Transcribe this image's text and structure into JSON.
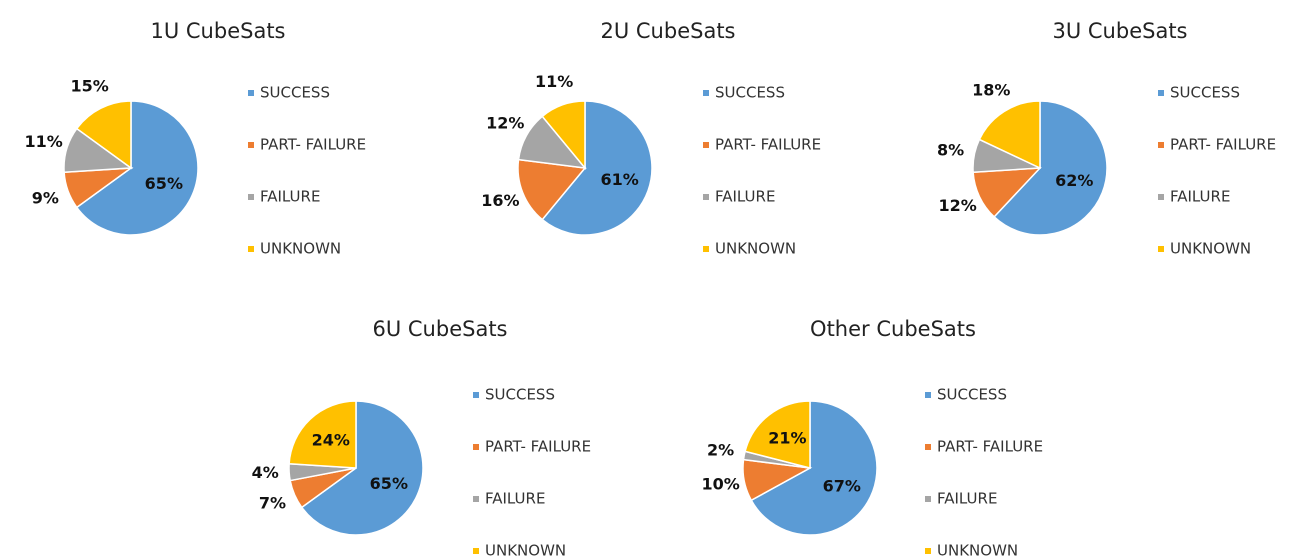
{
  "chart_data": [
    {
      "type": "pie",
      "title": "1U CubeSats",
      "categories": [
        "SUCCESS",
        "PART- FAILURE",
        "FAILURE",
        "UNKNOWN"
      ],
      "values": [
        65,
        9,
        11,
        15
      ],
      "value_labels": [
        "65%",
        "9%",
        "11%",
        "15%"
      ],
      "colors": [
        "#5b9bd5",
        "#ed7d31",
        "#a5a5a5",
        "#ffc000"
      ]
    },
    {
      "type": "pie",
      "title": "2U CubeSats",
      "categories": [
        "SUCCESS",
        "PART- FAILURE",
        "FAILURE",
        "UNKNOWN"
      ],
      "values": [
        61,
        16,
        12,
        11
      ],
      "value_labels": [
        "61%",
        "16%",
        "12%",
        "11%"
      ],
      "colors": [
        "#5b9bd5",
        "#ed7d31",
        "#a5a5a5",
        "#ffc000"
      ]
    },
    {
      "type": "pie",
      "title": "3U CubeSats",
      "categories": [
        "SUCCESS",
        "PART- FAILURE",
        "FAILURE",
        "UNKNOWN"
      ],
      "values": [
        62,
        12,
        8,
        18
      ],
      "value_labels": [
        "62%",
        "12%",
        "8%",
        "18%"
      ],
      "colors": [
        "#5b9bd5",
        "#ed7d31",
        "#a5a5a5",
        "#ffc000"
      ]
    },
    {
      "type": "pie",
      "title": "6U CubeSats",
      "categories": [
        "SUCCESS",
        "PART- FAILURE",
        "FAILURE",
        "UNKNOWN"
      ],
      "values": [
        65,
        7,
        4,
        24
      ],
      "value_labels": [
        "65%",
        "7%",
        "4%",
        "24%"
      ],
      "colors": [
        "#5b9bd5",
        "#ed7d31",
        "#a5a5a5",
        "#ffc000"
      ]
    },
    {
      "type": "pie",
      "title": "Other CubeSats",
      "categories": [
        "SUCCESS",
        "PART- FAILURE",
        "FAILURE",
        "UNKNOWN"
      ],
      "values": [
        67,
        10,
        2,
        21
      ],
      "value_labels": [
        "67%",
        "10%",
        "2%",
        "21%"
      ],
      "colors": [
        "#5b9bd5",
        "#ed7d31",
        "#a5a5a5",
        "#ffc000"
      ]
    }
  ]
}
